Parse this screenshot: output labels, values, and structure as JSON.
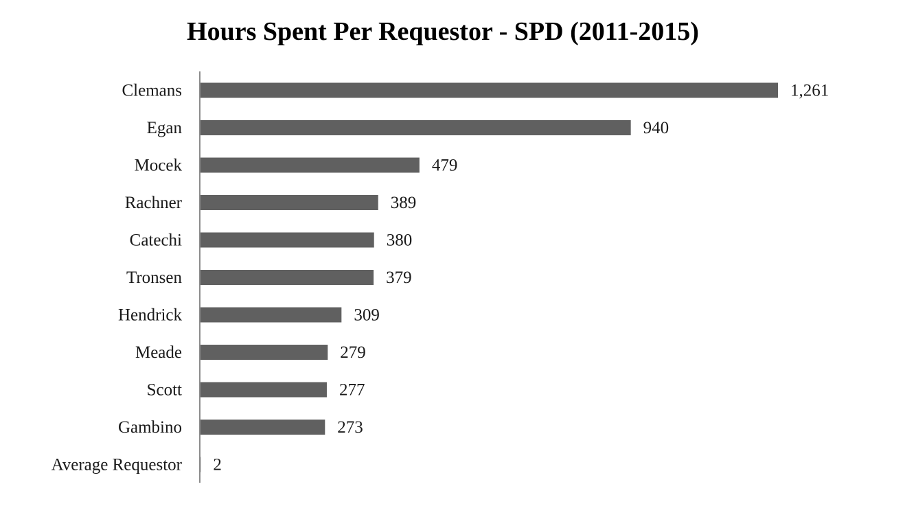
{
  "chart_data": {
    "type": "bar",
    "orientation": "horizontal",
    "title": "Hours Spent Per Requestor - SPD (2011-2015)",
    "xlabel": "",
    "ylabel": "",
    "categories": [
      "Clemans",
      "Egan",
      "Mocek",
      "Rachner",
      "Catechi",
      "Tronsen",
      "Hendrick",
      "Meade",
      "Scott",
      "Gambino",
      "Average Requestor"
    ],
    "values": [
      1261,
      940,
      479,
      389,
      380,
      379,
      309,
      279,
      277,
      273,
      2
    ],
    "value_labels": [
      "1,261",
      "940",
      "479",
      "389",
      "380",
      "379",
      "309",
      "279",
      "277",
      "273",
      "2"
    ],
    "xlim": [
      0,
      1261
    ],
    "grid": false,
    "legend": "none",
    "bar_color": "#606060",
    "axis_color": "#8c8c8c"
  }
}
